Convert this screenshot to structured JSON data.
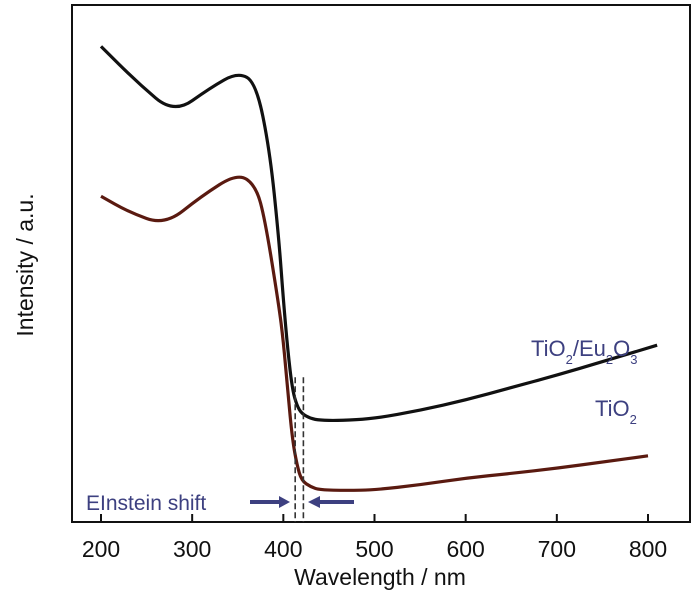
{
  "chart_data": {
    "type": "line",
    "title": "",
    "xlabel": "Wavelength / nm",
    "ylabel": "Intensity / a.u.",
    "xlim": [
      165,
      845
    ],
    "ylim": [
      0,
      100
    ],
    "xticks": [
      200,
      300,
      400,
      500,
      600,
      700,
      800
    ],
    "grid": false,
    "series": [
      {
        "name": "TiO2/Eu2O3",
        "label_main": "TiO",
        "sub1": "2",
        "label_mid": "/Eu",
        "sub2": "2",
        "label_end": "O",
        "sub3": "3",
        "color": "#111111",
        "x": [
          200,
          240,
          280,
          320,
          350,
          370,
          385,
          395,
          400,
          405,
          410,
          415,
          420,
          430,
          440,
          460,
          500,
          550,
          600,
          650,
          700,
          750,
          810
        ],
        "y": [
          92,
          85,
          79,
          84,
          87,
          85,
          72,
          55,
          43,
          33,
          25.5,
          22.5,
          21,
          20,
          19.7,
          19.6,
          20,
          21.6,
          23.6,
          26,
          28.4,
          31,
          34.2
        ]
      },
      {
        "name": "TiO2",
        "label_main": "TiO",
        "sub1": "2",
        "color": "#5a1a10",
        "x": [
          200,
          230,
          270,
          310,
          350,
          370,
          380,
          395,
          400,
          405,
          410,
          415,
          420,
          430,
          440,
          470,
          500,
          550,
          600,
          650,
          700,
          750,
          800
        ],
        "y": [
          63,
          60,
          57.4,
          63,
          67.5,
          65,
          58.4,
          42,
          35,
          25,
          15.9,
          11,
          8,
          6.8,
          6.2,
          6.1,
          6.2,
          7.2,
          8.5,
          9.4,
          10.4,
          11.6,
          12.8
        ]
      }
    ],
    "annotation": {
      "text": "EInstein shift",
      "dashed_lines_x": [
        413,
        422
      ],
      "color": "#3d4080"
    }
  }
}
